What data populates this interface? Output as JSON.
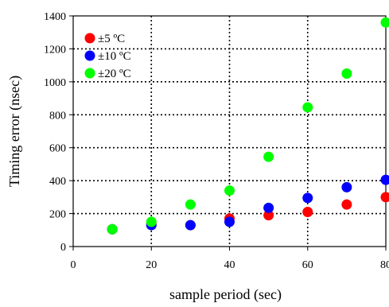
{
  "chart_data": {
    "type": "scatter",
    "xlabel": "sample period (sec)",
    "ylabel": "Timing error (nsec)",
    "xlim": [
      0,
      80
    ],
    "ylim": [
      0,
      1400
    ],
    "x_ticks": [
      0,
      20,
      40,
      60,
      80
    ],
    "x_tick_labels": [
      "0",
      "20",
      "40",
      "60",
      "80"
    ],
    "y_ticks": [
      0,
      200,
      400,
      600,
      800,
      1000,
      1200,
      1400
    ],
    "y_tick_labels": [
      "0",
      "200",
      "400",
      "600",
      "800",
      "1000",
      "1200",
      "1400"
    ],
    "grid": true,
    "legend_position": "top-left",
    "series": [
      {
        "name": "±5 ºC",
        "color": "#ff0000",
        "x": [
          10,
          20,
          30,
          40,
          50,
          60,
          70,
          80
        ],
        "y": [
          105,
          140,
          130,
          170,
          190,
          210,
          255,
          300
        ]
      },
      {
        "name": "±10 ºC",
        "color": "#0000ff",
        "x": [
          10,
          20,
          30,
          40,
          50,
          60,
          70,
          80
        ],
        "y": [
          105,
          130,
          130,
          150,
          235,
          295,
          360,
          405
        ]
      },
      {
        "name": "±20 ºC",
        "color": "#00ff00",
        "x": [
          10,
          20,
          30,
          40,
          50,
          60,
          70,
          80
        ],
        "y": [
          105,
          150,
          255,
          340,
          545,
          845,
          1050,
          1360
        ]
      }
    ]
  }
}
